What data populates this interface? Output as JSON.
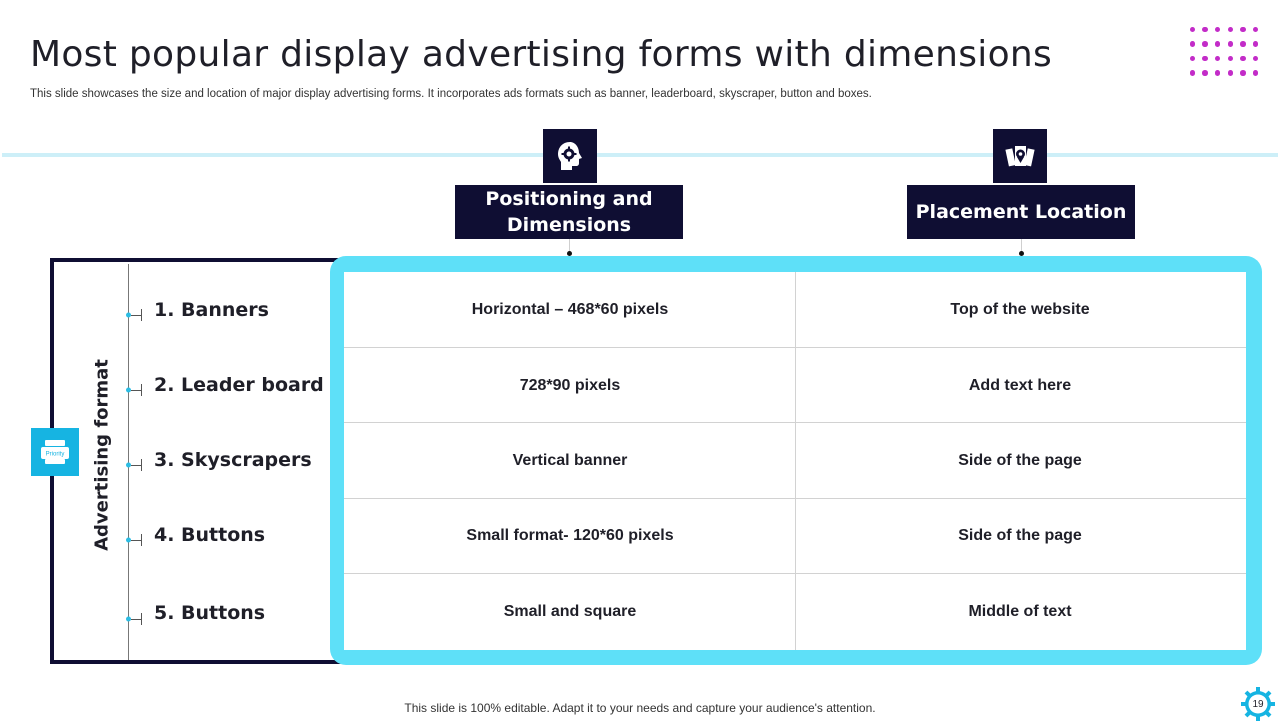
{
  "slide": {
    "title": "Most popular display advertising forms with dimensions",
    "subtitle": "This slide showcases the size and location of major display advertising forms. It incorporates ads formats such as banner, leaderboard, skyscraper, button and boxes.",
    "footer": "This slide is 100% editable. Adapt it to your needs and capture your audience's attention.",
    "page_number": "19"
  },
  "colors": {
    "navy": "#0f0e33",
    "cyan": "#5ee0f8",
    "accent_blue": "#16b4e2",
    "magenta": "#c32cc8"
  },
  "headers": [
    {
      "label": "Positioning and Dimensions",
      "icon": "gear-head-icon"
    },
    {
      "label": "Placement Location",
      "icon": "map-pin-icon"
    }
  ],
  "axis_label": "Advertising format",
  "left_icon": {
    "name": "priority-icon",
    "text": "Priority"
  },
  "rows": [
    {
      "label": "1. Banners",
      "dimension": "Horizontal – 468*60 pixels",
      "location": "Top of the website"
    },
    {
      "label": "2. Leader board",
      "dimension": "728*90 pixels",
      "location": "Add text here"
    },
    {
      "label": "3. Skyscrapers",
      "dimension": "Vertical banner",
      "location": "Side of the page"
    },
    {
      "label": "4. Buttons",
      "dimension": "Small format- 120*60 pixels",
      "location": "Side of the page"
    },
    {
      "label": "5. Buttons",
      "dimension": "Small and square",
      "location": "Middle of text"
    }
  ]
}
